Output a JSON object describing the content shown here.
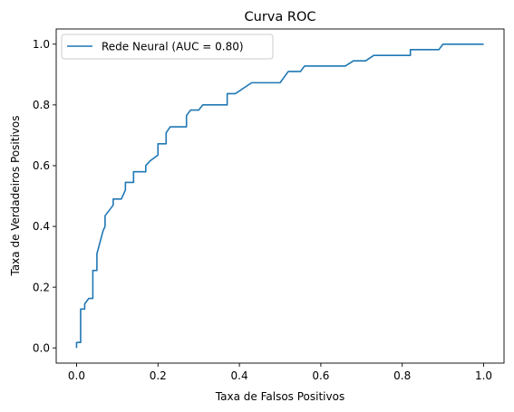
{
  "chart_data": {
    "type": "line",
    "title": "Curva ROC",
    "xlabel": "Taxa de Falsos Positivos",
    "ylabel": "Taxa de Verdadeiros Positivos",
    "xlim": [
      -0.05,
      1.05
    ],
    "ylim": [
      -0.05,
      1.05
    ],
    "xticks": [
      0.0,
      0.2,
      0.4,
      0.6,
      0.8,
      1.0
    ],
    "yticks": [
      0.0,
      0.2,
      0.4,
      0.6,
      0.8,
      1.0
    ],
    "xtick_labels": [
      "0.0",
      "0.2",
      "0.4",
      "0.6",
      "0.8",
      "1.0"
    ],
    "ytick_labels": [
      "0.0",
      "0.2",
      "0.4",
      "0.6",
      "0.8",
      "1.0"
    ],
    "grid": false,
    "legend": {
      "placement": "top-left"
    },
    "series": [
      {
        "name": "Rede Neural (AUC = 0.80)",
        "color": "#1f77b4",
        "x": [
          0.0,
          0.0,
          0.01,
          0.01,
          0.02,
          0.02,
          0.03,
          0.04,
          0.04,
          0.05,
          0.05,
          0.06,
          0.065,
          0.07,
          0.07,
          0.09,
          0.09,
          0.11,
          0.12,
          0.12,
          0.14,
          0.14,
          0.17,
          0.17,
          0.18,
          0.2,
          0.2,
          0.22,
          0.22,
          0.23,
          0.27,
          0.27,
          0.28,
          0.3,
          0.31,
          0.37,
          0.37,
          0.39,
          0.43,
          0.5,
          0.52,
          0.55,
          0.56,
          0.66,
          0.68,
          0.71,
          0.73,
          0.82,
          0.82,
          0.89,
          0.9,
          1.0
        ],
        "y": [
          0.0,
          0.018,
          0.018,
          0.128,
          0.128,
          0.145,
          0.163,
          0.163,
          0.255,
          0.255,
          0.31,
          0.36,
          0.385,
          0.4,
          0.435,
          0.47,
          0.49,
          0.49,
          0.52,
          0.545,
          0.545,
          0.58,
          0.58,
          0.6,
          0.615,
          0.635,
          0.672,
          0.672,
          0.708,
          0.728,
          0.728,
          0.765,
          0.783,
          0.783,
          0.8,
          0.8,
          0.837,
          0.837,
          0.873,
          0.873,
          0.91,
          0.91,
          0.928,
          0.928,
          0.945,
          0.945,
          0.963,
          0.963,
          0.982,
          0.982,
          1.0,
          1.0
        ]
      }
    ]
  }
}
